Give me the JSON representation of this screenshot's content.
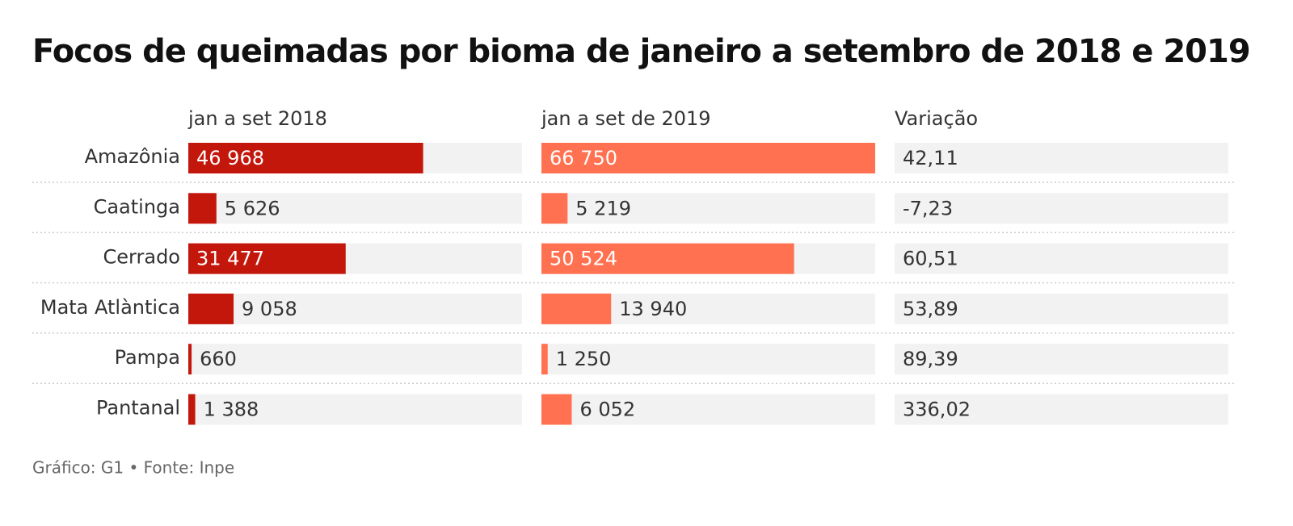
{
  "chart_data": {
    "type": "bar",
    "title": "Focos de queimadas por bioma de janeiro a setembro de 2018 e 2019",
    "source": "Gráfico: G1 • Fonte: Inpe",
    "categories": [
      "Amazônia",
      "Caatinga",
      "Cerrado",
      "Mata Atlàntica",
      "Pampa",
      "Pantanal"
    ],
    "xlim": [
      0,
      66750
    ],
    "series": [
      {
        "name": "jan a set 2018",
        "color": "#c4170c",
        "values": [
          46968,
          5626,
          31477,
          9058,
          660,
          1388
        ],
        "value_labels": [
          "46 968",
          "5 626",
          "31 477",
          "9 058",
          "660",
          "1 388"
        ]
      },
      {
        "name": "jan a set de 2019",
        "color": "#ff7150",
        "values": [
          66750,
          5219,
          50524,
          13940,
          1250,
          6052
        ],
        "value_labels": [
          "66 750",
          "5 219",
          "50 524",
          "13 940",
          "1 250",
          "6 052"
        ]
      },
      {
        "name": "Variação",
        "values": [
          42.11,
          -7.23,
          60.51,
          53.89,
          89.39,
          336.02
        ],
        "value_labels": [
          "42,11",
          "-7,23",
          "60,51",
          "53,89",
          "89,39",
          "336,02"
        ]
      }
    ]
  }
}
